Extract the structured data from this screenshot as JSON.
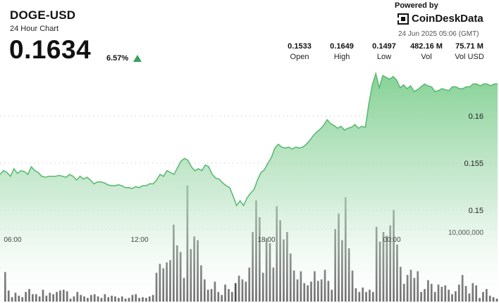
{
  "header": {
    "title": "DOGE-USD",
    "subtitle": "24 Hour Chart",
    "price": "0.1634",
    "change": "6.57%",
    "powered_by": "Powered by",
    "brand": "CoinDeskData",
    "timestamp": "24 Jun 2025 05:06 (GMT)"
  },
  "stats": [
    {
      "value": "0.1533",
      "label": "Open"
    },
    {
      "value": "0.1649",
      "label": "High"
    },
    {
      "value": "0.1497",
      "label": "Low"
    },
    {
      "value": "482.16 M",
      "label": "Vol"
    },
    {
      "value": "75.71 M",
      "label": "Vol USD"
    }
  ],
  "colors": {
    "line": "#5cbb73",
    "fill_top": "#7fcf90",
    "bars": "#555555",
    "highlight_bar": "#222222",
    "up": "#3aa05a"
  },
  "chart_data": {
    "type": "line",
    "x_tick_labels": [
      "06:00",
      "12:00",
      "18:00",
      "00:00"
    ],
    "y_tick_labels": [
      "0.16",
      "0.155",
      "0.15"
    ],
    "y_ticks": [
      0.16,
      0.155,
      0.15
    ],
    "ylim": [
      0.1455,
      0.1662
    ],
    "volume_label": "10,000,000",
    "volume_max": 17000000,
    "grid": "horizontal-dotted",
    "price": [
      0.1538,
      0.1542,
      0.154,
      0.1536,
      0.1544,
      0.1539,
      0.1542,
      0.1541,
      0.1538,
      0.1546,
      0.1542,
      0.154,
      0.1536,
      0.1535,
      0.1536,
      0.1536,
      0.1536,
      0.1537,
      0.1536,
      0.1535,
      0.1538,
      0.1536,
      0.1532,
      0.1536,
      0.1533,
      0.1535,
      0.1532,
      0.1528,
      0.153,
      0.153,
      0.1529,
      0.1527,
      0.1526,
      0.1526,
      0.1527,
      0.1526,
      0.1524,
      0.1524,
      0.1523,
      0.1525,
      0.1524,
      0.1526,
      0.1526,
      0.1528,
      0.1528,
      0.1532,
      0.1538,
      0.1536,
      0.1542,
      0.154,
      0.1538,
      0.1545,
      0.1552,
      0.1555,
      0.1553,
      0.1546,
      0.1542,
      0.1544,
      0.1542,
      0.1548,
      0.1546,
      0.1538,
      0.1534,
      0.1533,
      0.1529,
      0.1526,
      0.1524,
      0.1515,
      0.1505,
      0.151,
      0.1505,
      0.1513,
      0.1518,
      0.1522,
      0.1532,
      0.154,
      0.1543,
      0.155,
      0.1556,
      0.1566,
      0.157,
      0.1567,
      0.1566,
      0.1567,
      0.1565,
      0.1567,
      0.1566,
      0.1567,
      0.157,
      0.1574,
      0.1579,
      0.1583,
      0.1586,
      0.159,
      0.1596,
      0.1592,
      0.159,
      0.1587,
      0.1589,
      0.1585,
      0.1587,
      0.1588,
      0.1591,
      0.1587,
      0.1589,
      0.1588,
      0.1613,
      0.1633,
      0.1645,
      0.163,
      0.1643,
      0.1641,
      0.1639,
      0.1642,
      0.1638,
      0.163,
      0.1633,
      0.1629,
      0.1632,
      0.1626,
      0.1628,
      0.1631,
      0.1634,
      0.1632,
      0.1631,
      0.1626,
      0.1627,
      0.1629,
      0.1628,
      0.1627,
      0.1631,
      0.1631,
      0.1629,
      0.1629,
      0.1631,
      0.1631,
      0.1634,
      0.1634,
      0.1632,
      0.1634,
      0.1634,
      0.1632,
      0.1634,
      0.1634
    ],
    "volume": [
      4000000,
      1500000,
      600000,
      1200000,
      800000,
      600000,
      1300000,
      1700000,
      1000000,
      1000000,
      700000,
      1600000,
      800000,
      1200000,
      1000000,
      1300000,
      1500000,
      1600000,
      1400000,
      400000,
      700000,
      1300000,
      900000,
      700000,
      500000,
      900000,
      1000000,
      700000,
      500000,
      1000000,
      600000,
      800000,
      700000,
      500000,
      700000,
      400000,
      500000,
      900000,
      1000000,
      500000,
      600000,
      500000,
      700000,
      900000,
      3900000,
      5100000,
      4500000,
      5300000,
      5600000,
      10400000,
      7600000,
      6700000,
      3200000,
      15700000,
      7100000,
      8800000,
      8300000,
      4900000,
      3000000,
      1600000,
      1700000,
      2700000,
      1300000,
      900000,
      2300000,
      1700000,
      1300000,
      2500000,
      3500000,
      3000000,
      2700000,
      4600000,
      9400000,
      13700000,
      11400000,
      3900000,
      8500000,
      7900000,
      4600000,
      12900000,
      11000000,
      8400000,
      9400000,
      6500000,
      4200000,
      3000000,
      4100000,
      2500000,
      2200000,
      2700000,
      4100000,
      2800000,
      3000000,
      4300000,
      2800000,
      1600000,
      9800000,
      11900000,
      8300000,
      14100000,
      7200000,
      4200000,
      1800000,
      1300000,
      1900000,
      1300000,
      1600000,
      1300000,
      10100000,
      8100000,
      9400000,
      8900000,
      10300000,
      12400000,
      7700000,
      4700000,
      2400000,
      3600000,
      4300000,
      3200000,
      4100000,
      1300000,
      1700000,
      2900000,
      2400000,
      1300000,
      2300000,
      2000000,
      2200000,
      1600000,
      1000000,
      1400000,
      2300000,
      3600000,
      2100000,
      1100000,
      2500000,
      2200000,
      500000,
      1300000,
      1700000,
      800000,
      600000,
      400000
    ]
  }
}
